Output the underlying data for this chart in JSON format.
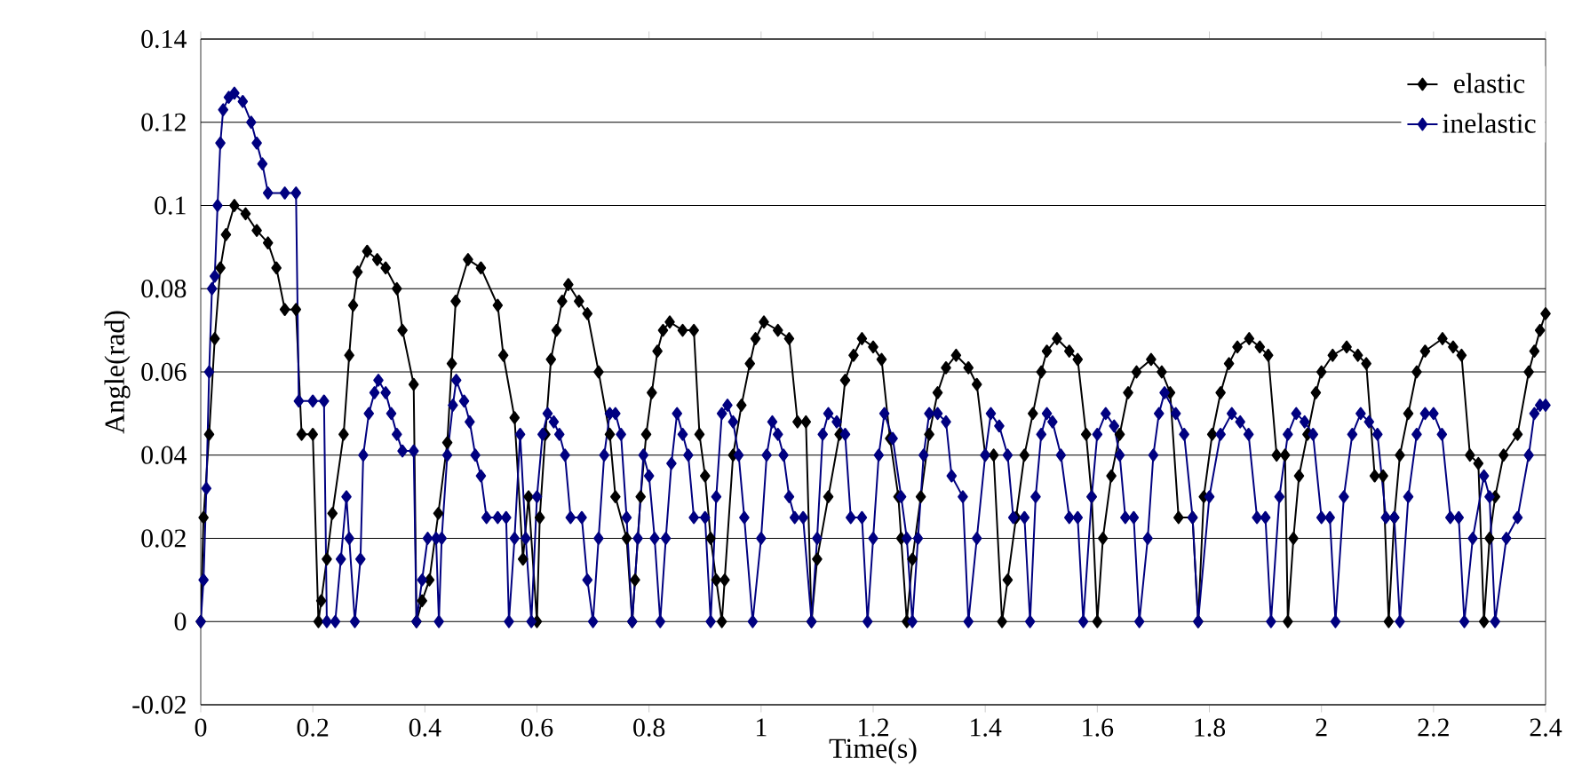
{
  "chart_data": {
    "type": "line",
    "xlabel": "Time(s)",
    "ylabel": "Angle(rad)",
    "xlim": [
      0,
      2.4
    ],
    "ylim": [
      -0.02,
      0.14
    ],
    "xticks": [
      0,
      0.2,
      0.4,
      0.6,
      0.8,
      1,
      1.2,
      1.4,
      1.6,
      1.8,
      2,
      2.2,
      2.4
    ],
    "yticks": [
      -0.02,
      0,
      0.02,
      0.04,
      0.06,
      0.08,
      0.1,
      0.12,
      0.14
    ],
    "grid": "y",
    "legend": "top right",
    "marker": "diamond",
    "line_style": "solid",
    "series": [
      {
        "name": "elastic",
        "color": "#000000",
        "x": [
          0,
          0.005,
          0.015,
          0.025,
          0.035,
          0.045,
          0.06,
          0.08,
          0.1,
          0.12,
          0.135,
          0.15,
          0.17,
          0.18,
          0.2,
          0.21,
          0.215,
          0.225,
          0.235,
          0.255,
          0.265,
          0.272,
          0.28,
          0.297,
          0.315,
          0.33,
          0.35,
          0.36,
          0.38,
          0.385,
          0.395,
          0.408,
          0.424,
          0.44,
          0.448,
          0.455,
          0.477,
          0.5,
          0.53,
          0.54,
          0.56,
          0.575,
          0.585,
          0.6,
          0.605,
          0.615,
          0.625,
          0.635,
          0.645,
          0.656,
          0.675,
          0.69,
          0.71,
          0.73,
          0.74,
          0.76,
          0.77,
          0.775,
          0.785,
          0.795,
          0.805,
          0.815,
          0.825,
          0.837,
          0.86,
          0.88,
          0.89,
          0.9,
          0.91,
          0.92,
          0.93,
          0.935,
          0.95,
          0.965,
          0.98,
          0.99,
          1.005,
          1.03,
          1.05,
          1.065,
          1.08,
          1.09,
          1.1,
          1.12,
          1.14,
          1.15,
          1.165,
          1.18,
          1.2,
          1.215,
          1.23,
          1.245,
          1.25,
          1.26,
          1.27,
          1.285,
          1.3,
          1.315,
          1.33,
          1.348,
          1.37,
          1.385,
          1.4,
          1.415,
          1.43,
          1.44,
          1.455,
          1.47,
          1.485,
          1.5,
          1.51,
          1.528,
          1.55,
          1.565,
          1.58,
          1.59,
          1.6,
          1.61,
          1.625,
          1.64,
          1.655,
          1.67,
          1.696,
          1.715,
          1.73,
          1.745,
          1.77,
          1.78,
          1.79,
          1.805,
          1.82,
          1.835,
          1.85,
          1.871,
          1.89,
          1.905,
          1.92,
          1.935,
          1.94,
          1.95,
          1.96,
          1.975,
          1.99,
          2.0,
          2.02,
          2.045,
          2.065,
          2.08,
          2.095,
          2.11,
          2.12,
          2.13,
          2.14,
          2.155,
          2.17,
          2.185,
          2.216,
          2.235,
          2.25,
          2.265,
          2.28,
          2.29,
          2.3,
          2.31,
          2.325,
          2.35,
          2.37,
          2.38,
          2.39,
          2.4
        ],
        "values": [
          0,
          0.025,
          0.045,
          0.068,
          0.085,
          0.093,
          0.1,
          0.098,
          0.094,
          0.091,
          0.085,
          0.075,
          0.075,
          0.045,
          0.045,
          0,
          0.005,
          0.015,
          0.026,
          0.045,
          0.064,
          0.076,
          0.084,
          0.089,
          0.087,
          0.085,
          0.08,
          0.07,
          0.057,
          0,
          0.005,
          0.01,
          0.026,
          0.043,
          0.062,
          0.077,
          0.087,
          0.085,
          0.076,
          0.064,
          0.049,
          0.015,
          0.03,
          0,
          0.025,
          0.045,
          0.063,
          0.07,
          0.077,
          0.081,
          0.077,
          0.074,
          0.06,
          0.045,
          0.03,
          0.02,
          0,
          0.01,
          0.03,
          0.045,
          0.055,
          0.065,
          0.07,
          0.072,
          0.07,
          0.07,
          0.045,
          0.035,
          0.02,
          0.01,
          0,
          0.01,
          0.04,
          0.052,
          0.062,
          0.068,
          0.072,
          0.07,
          0.068,
          0.048,
          0.048,
          0,
          0.015,
          0.03,
          0.045,
          0.058,
          0.064,
          0.068,
          0.066,
          0.063,
          0.044,
          0.03,
          0.02,
          0,
          0.015,
          0.03,
          0.045,
          0.055,
          0.061,
          0.064,
          0.061,
          0.057,
          0.04,
          0.04,
          0,
          0.01,
          0.025,
          0.04,
          0.05,
          0.06,
          0.065,
          0.068,
          0.065,
          0.063,
          0.045,
          0.03,
          0,
          0.02,
          0.035,
          0.045,
          0.055,
          0.06,
          0.063,
          0.06,
          0.055,
          0.025,
          0.025,
          0,
          0.03,
          0.045,
          0.055,
          0.062,
          0.066,
          0.068,
          0.066,
          0.064,
          0.04,
          0.04,
          0,
          0.02,
          0.035,
          0.045,
          0.055,
          0.06,
          0.064,
          0.066,
          0.064,
          0.062,
          0.035,
          0.035,
          0,
          0.025,
          0.04,
          0.05,
          0.06,
          0.065,
          0.068,
          0.066,
          0.064,
          0.04,
          0.038,
          0,
          0.02,
          0.03,
          0.04,
          0.045,
          0.06,
          0.065,
          0.07,
          0.074
        ]
      },
      {
        "name": "inelastic",
        "color": "#000080",
        "x": [
          0,
          0.005,
          0.01,
          0.015,
          0.02,
          0.025,
          0.03,
          0.035,
          0.04,
          0.05,
          0.06,
          0.075,
          0.09,
          0.1,
          0.11,
          0.12,
          0.15,
          0.17,
          0.175,
          0.2,
          0.22,
          0.225,
          0.24,
          0.25,
          0.26,
          0.265,
          0.275,
          0.285,
          0.29,
          0.3,
          0.31,
          0.317,
          0.33,
          0.34,
          0.35,
          0.36,
          0.38,
          0.385,
          0.395,
          0.405,
          0.42,
          0.425,
          0.43,
          0.44,
          0.45,
          0.456,
          0.47,
          0.48,
          0.49,
          0.5,
          0.51,
          0.53,
          0.545,
          0.55,
          0.56,
          0.57,
          0.58,
          0.59,
          0.6,
          0.61,
          0.619,
          0.63,
          0.64,
          0.65,
          0.66,
          0.68,
          0.69,
          0.7,
          0.71,
          0.72,
          0.73,
          0.74,
          0.75,
          0.76,
          0.77,
          0.78,
          0.79,
          0.8,
          0.81,
          0.82,
          0.83,
          0.84,
          0.85,
          0.86,
          0.87,
          0.88,
          0.9,
          0.91,
          0.92,
          0.93,
          0.94,
          0.95,
          0.96,
          0.97,
          0.985,
          1.0,
          1.01,
          1.02,
          1.03,
          1.04,
          1.05,
          1.06,
          1.075,
          1.09,
          1.1,
          1.11,
          1.12,
          1.135,
          1.15,
          1.16,
          1.18,
          1.19,
          1.2,
          1.21,
          1.22,
          1.235,
          1.25,
          1.26,
          1.27,
          1.28,
          1.29,
          1.3,
          1.315,
          1.33,
          1.34,
          1.36,
          1.37,
          1.385,
          1.4,
          1.41,
          1.425,
          1.44,
          1.45,
          1.47,
          1.48,
          1.49,
          1.5,
          1.51,
          1.52,
          1.535,
          1.55,
          1.565,
          1.575,
          1.59,
          1.6,
          1.615,
          1.63,
          1.64,
          1.65,
          1.665,
          1.675,
          1.69,
          1.7,
          1.71,
          1.72,
          1.74,
          1.755,
          1.77,
          1.78,
          1.8,
          1.82,
          1.84,
          1.855,
          1.87,
          1.885,
          1.9,
          1.91,
          1.925,
          1.94,
          1.955,
          1.97,
          1.985,
          2.0,
          2.015,
          2.025,
          2.04,
          2.055,
          2.07,
          2.085,
          2.1,
          2.115,
          2.13,
          2.14,
          2.155,
          2.17,
          2.185,
          2.2,
          2.215,
          2.23,
          2.245,
          2.255,
          2.27,
          2.29,
          2.3,
          2.31,
          2.33,
          2.35,
          2.37,
          2.38,
          2.39,
          2.4
        ],
        "values": [
          0,
          0.01,
          0.032,
          0.06,
          0.08,
          0.083,
          0.1,
          0.115,
          0.123,
          0.126,
          0.127,
          0.125,
          0.12,
          0.115,
          0.11,
          0.103,
          0.103,
          0.103,
          0.053,
          0.053,
          0.053,
          0,
          0,
          0.015,
          0.03,
          0.02,
          0,
          0.015,
          0.04,
          0.05,
          0.055,
          0.058,
          0.055,
          0.05,
          0.045,
          0.041,
          0.041,
          0,
          0.01,
          0.02,
          0.02,
          0,
          0.02,
          0.04,
          0.052,
          0.058,
          0.053,
          0.048,
          0.04,
          0.035,
          0.025,
          0.025,
          0.025,
          0,
          0.02,
          0.045,
          0.02,
          0,
          0.03,
          0.045,
          0.05,
          0.048,
          0.045,
          0.04,
          0.025,
          0.025,
          0.01,
          0,
          0.02,
          0.04,
          0.05,
          0.05,
          0.045,
          0.025,
          0,
          0.02,
          0.04,
          0.035,
          0.02,
          0,
          0.02,
          0.038,
          0.05,
          0.045,
          0.04,
          0.025,
          0.025,
          0,
          0.03,
          0.05,
          0.052,
          0.048,
          0.04,
          0.025,
          0,
          0.02,
          0.04,
          0.048,
          0.045,
          0.04,
          0.03,
          0.025,
          0.025,
          0,
          0.02,
          0.045,
          0.05,
          0.048,
          0.045,
          0.025,
          0.025,
          0,
          0.02,
          0.04,
          0.05,
          0.044,
          0.03,
          0.02,
          0,
          0.02,
          0.04,
          0.05,
          0.05,
          0.048,
          0.035,
          0.03,
          0,
          0.02,
          0.04,
          0.05,
          0.047,
          0.04,
          0.025,
          0.025,
          0,
          0.03,
          0.045,
          0.05,
          0.048,
          0.04,
          0.025,
          0.025,
          0,
          0.03,
          0.045,
          0.05,
          0.047,
          0.04,
          0.025,
          0.025,
          0,
          0.02,
          0.04,
          0.05,
          0.055,
          0.05,
          0.045,
          0.025,
          0,
          0.03,
          0.045,
          0.05,
          0.048,
          0.045,
          0.025,
          0.025,
          0,
          0.03,
          0.045,
          0.05,
          0.048,
          0.045,
          0.025,
          0.025,
          0,
          0.03,
          0.045,
          0.05,
          0.048,
          0.045,
          0.025,
          0.025,
          0,
          0.03,
          0.045,
          0.05,
          0.05,
          0.045,
          0.025,
          0.025,
          0,
          0.02,
          0.035,
          0.03,
          0,
          0.02,
          0.025,
          0.04,
          0.05,
          0.052,
          0.052
        ]
      }
    ]
  }
}
